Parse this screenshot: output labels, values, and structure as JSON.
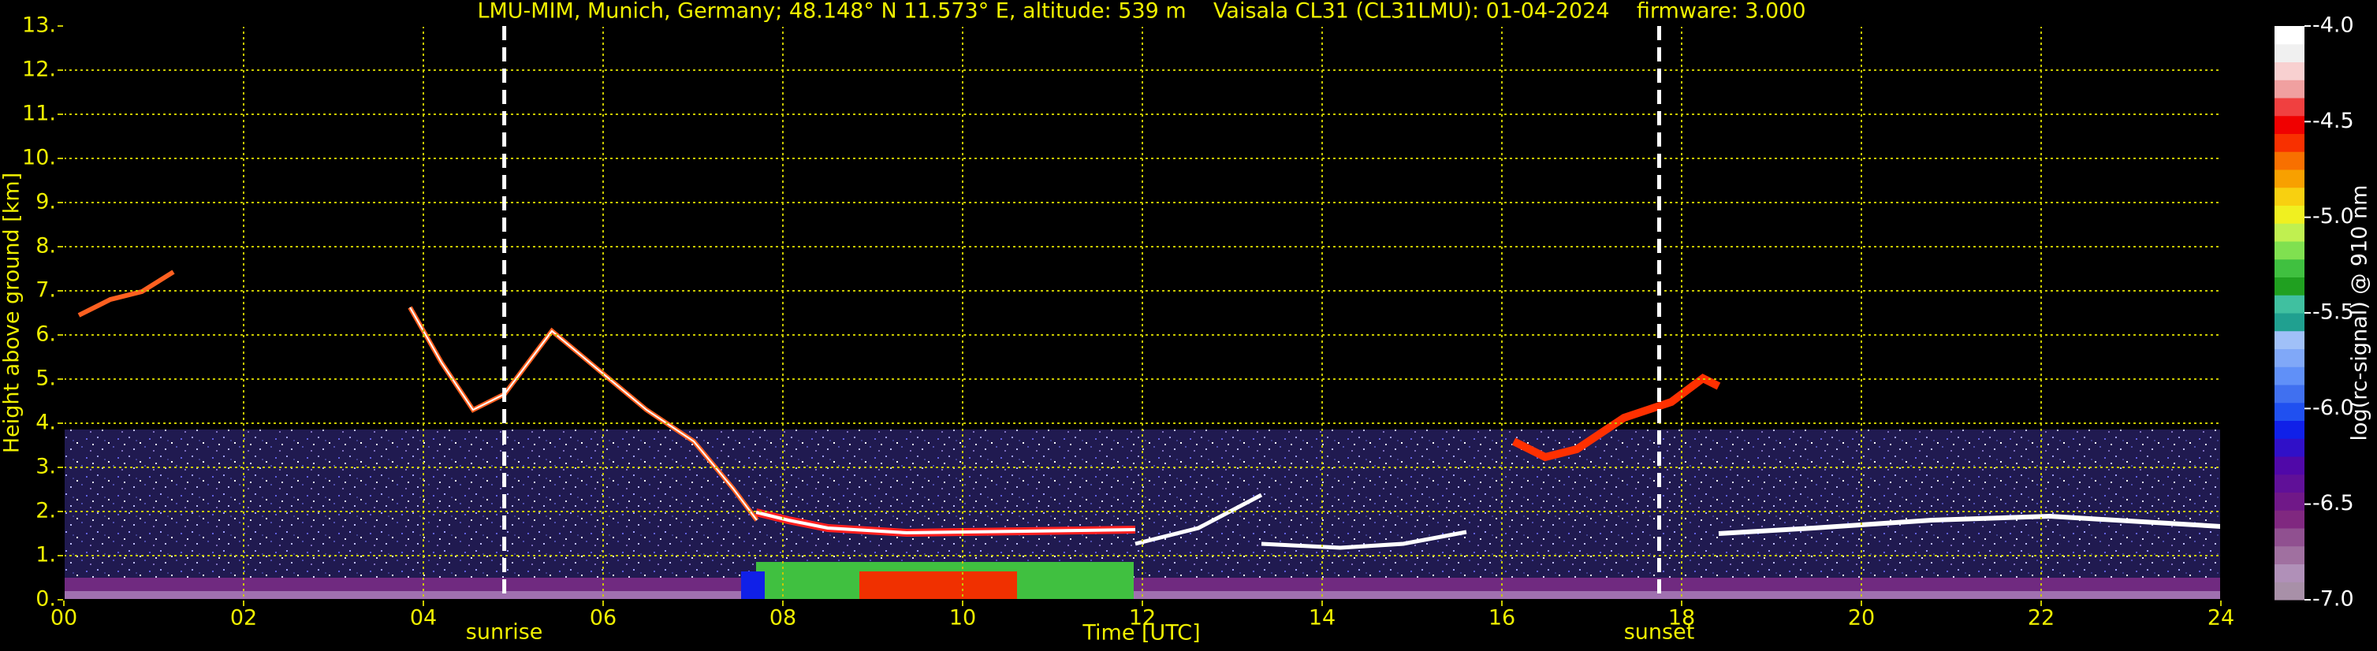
{
  "chart_data": {
    "type": "heatmap",
    "title": "LMU-MIM, Munich, Germany; 48.148° N 11.573° E, altitude: 539 m    Vaisala CL31 (CL31LMU): 01-04-2024    firmware: 3.000",
    "xlabel": "Time [UTC]",
    "ylabel": "Height above ground [km]",
    "xlim": [
      0,
      24
    ],
    "ylim": [
      0,
      13
    ],
    "xticks": [
      {
        "value": 0,
        "label": "00"
      },
      {
        "value": 2,
        "label": "02"
      },
      {
        "value": 4,
        "label": "04"
      },
      {
        "value": 6,
        "label": "06"
      },
      {
        "value": 8,
        "label": "08"
      },
      10,
      12,
      14,
      16,
      18,
      20,
      22,
      24
    ],
    "yticks": [
      {
        "value": 0,
        "label": "0."
      },
      {
        "value": 1,
        "label": "1."
      },
      {
        "value": 2,
        "label": "2."
      },
      {
        "value": 3,
        "label": "3."
      },
      {
        "value": 4,
        "label": "4."
      },
      {
        "value": 5,
        "label": "5."
      },
      {
        "value": 6,
        "label": "6."
      },
      {
        "value": 7,
        "label": "7."
      },
      {
        "value": 8,
        "label": "8."
      },
      {
        "value": 9,
        "label": "9."
      },
      {
        "value": 10,
        "label": "10."
      },
      {
        "value": 11,
        "label": "11."
      },
      {
        "value": 12,
        "label": "12."
      },
      {
        "value": 13,
        "label": "13."
      }
    ],
    "grid": true,
    "grid_color": "#c8c800",
    "annotations": [
      {
        "text": "sunrise",
        "x": 4.9
      },
      {
        "text": "sunset",
        "x": 17.75
      }
    ],
    "colorbar": {
      "label": "log(rc-signal) @ 910 nm",
      "lim": [
        -7,
        -4
      ],
      "ticks": [
        {
          "value": -4,
          "label": "-4.0"
        },
        {
          "value": -4.5,
          "label": "-4.5"
        },
        {
          "value": -5,
          "label": "-5.0"
        },
        {
          "value": -5.5,
          "label": "-5.5"
        },
        {
          "value": -6,
          "label": "-6.0"
        },
        {
          "value": -6.5,
          "label": "-6.5"
        },
        {
          "value": -7,
          "label": "-7.0"
        }
      ],
      "colors": [
        "#a890a8",
        "#b090b8",
        "#a070a0",
        "#905090",
        "#802880",
        "#701888",
        "#601098",
        "#5008a8",
        "#3010c8",
        "#1020e8",
        "#2050f0",
        "#4070f0",
        "#6090f8",
        "#80a8f8",
        "#a0c0f8",
        "#20a090",
        "#40c0a0",
        "#20a020",
        "#40c040",
        "#80e050",
        "#c0f050",
        "#f0f020",
        "#f8d010",
        "#f8a000",
        "#f87000",
        "#f83000",
        "#f00000",
        "#f04040",
        "#f0a0a0",
        "#f8d0d0",
        "#f0f0f0",
        "#ffffff"
      ]
    }
  }
}
